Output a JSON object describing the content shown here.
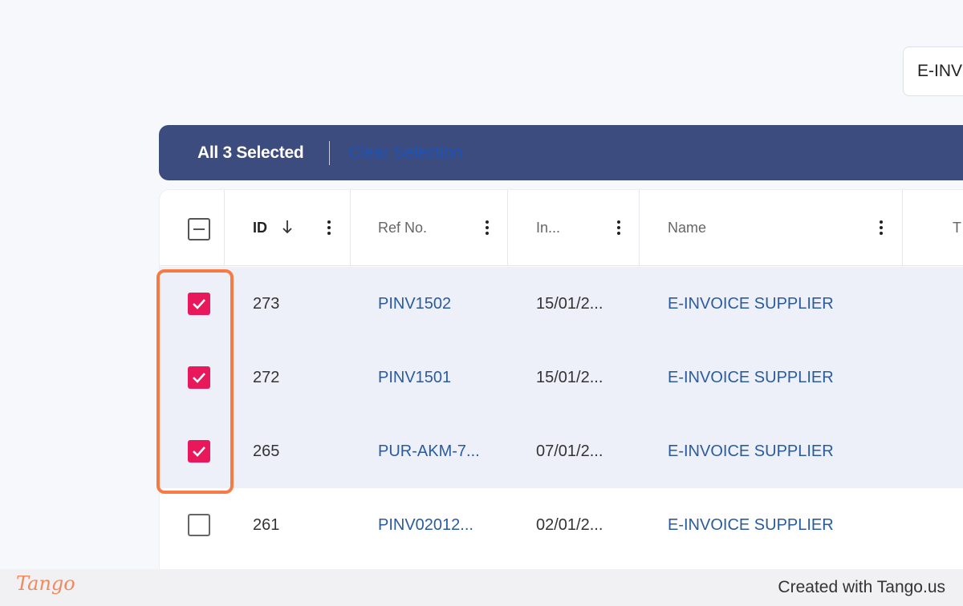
{
  "filter": {
    "value": "E-INV"
  },
  "selection_bar": {
    "count_label": "All 3 Selected",
    "clear_label": "Clear Selection"
  },
  "columns": [
    {
      "label": "ID",
      "sort": "descending"
    },
    {
      "label": "Ref No."
    },
    {
      "label": "In..."
    },
    {
      "label": "Name"
    },
    {
      "label": "T"
    }
  ],
  "rows": [
    {
      "id": "273",
      "ref": "PINV1502",
      "date": "15/01/2...",
      "name": "E-INVOICE SUPPLIER",
      "selected": true
    },
    {
      "id": "272",
      "ref": "PINV1501",
      "date": "15/01/2...",
      "name": "E-INVOICE SUPPLIER",
      "selected": true
    },
    {
      "id": "265",
      "ref": "PUR-AKM-7...",
      "date": "07/01/2...",
      "name": "E-INVOICE SUPPLIER",
      "selected": true
    },
    {
      "id": "261",
      "ref": "PINV02012...",
      "date": "02/01/2...",
      "name": "E-INVOICE SUPPLIER",
      "selected": false
    }
  ],
  "footer": {
    "brand": "Tango",
    "credit": "Created with Tango.us"
  },
  "colors": {
    "accent": "#e8185a",
    "bar": "#3d4c7e",
    "link": "#2a5b9e",
    "highlight": "#f77a45"
  }
}
